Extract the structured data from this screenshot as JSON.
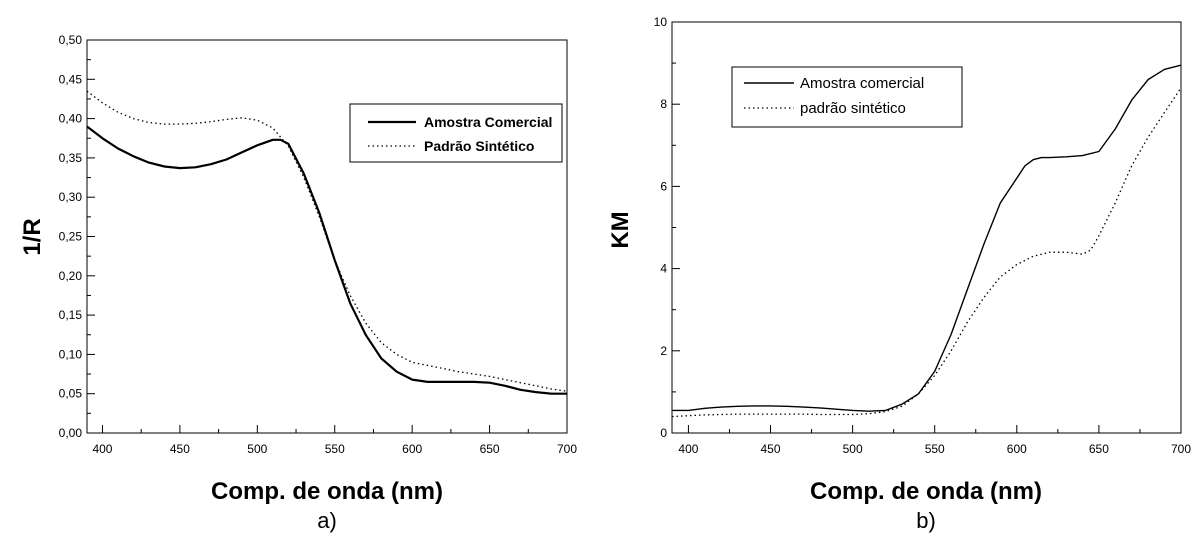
{
  "chart_data": [
    {
      "panel": "a)",
      "type": "line",
      "xlabel": "Comp. de onda (nm)",
      "ylabel": "1/R",
      "xlim": [
        390,
        700
      ],
      "ylim": [
        0.0,
        0.5
      ],
      "xticks": [
        "400",
        "450",
        "500",
        "550",
        "600",
        "650",
        "700"
      ],
      "yticks": [
        "0,00",
        "0,05",
        "0,10",
        "0,15",
        "0,20",
        "0,25",
        "0,30",
        "0,35",
        "0,40",
        "0,45",
        "0,50"
      ],
      "legend_position": "top-right",
      "series": [
        {
          "name": "Amostra Comercial",
          "style": "solid",
          "x": [
            390,
            400,
            410,
            420,
            430,
            440,
            450,
            460,
            470,
            480,
            490,
            500,
            510,
            515,
            520,
            530,
            540,
            550,
            560,
            570,
            580,
            590,
            600,
            610,
            620,
            630,
            640,
            650,
            660,
            670,
            680,
            690,
            700
          ],
          "y": [
            0.39,
            0.375,
            0.362,
            0.352,
            0.344,
            0.339,
            0.337,
            0.338,
            0.342,
            0.348,
            0.357,
            0.366,
            0.373,
            0.373,
            0.368,
            0.33,
            0.28,
            0.22,
            0.165,
            0.125,
            0.095,
            0.078,
            0.068,
            0.065,
            0.065,
            0.065,
            0.065,
            0.064,
            0.06,
            0.055,
            0.052,
            0.05,
            0.05
          ]
        },
        {
          "name": "Padrão Sintético",
          "style": "dotted",
          "x": [
            390,
            400,
            410,
            420,
            430,
            440,
            450,
            460,
            470,
            480,
            490,
            500,
            510,
            520,
            530,
            540,
            550,
            560,
            570,
            580,
            590,
            600,
            610,
            620,
            630,
            640,
            650,
            660,
            670,
            680,
            690,
            700
          ],
          "y": [
            0.435,
            0.42,
            0.408,
            0.4,
            0.395,
            0.393,
            0.393,
            0.394,
            0.396,
            0.399,
            0.401,
            0.398,
            0.388,
            0.365,
            0.325,
            0.275,
            0.22,
            0.175,
            0.14,
            0.115,
            0.1,
            0.09,
            0.086,
            0.082,
            0.078,
            0.075,
            0.072,
            0.068,
            0.064,
            0.06,
            0.056,
            0.053
          ]
        }
      ]
    },
    {
      "panel": "b)",
      "type": "line",
      "xlabel": "Comp. de onda (nm)",
      "ylabel": "KM",
      "xlim": [
        390,
        700
      ],
      "ylim": [
        0,
        10
      ],
      "xticks": [
        "400",
        "450",
        "500",
        "550",
        "600",
        "650",
        "700"
      ],
      "yticks": [
        "0",
        "2",
        "4",
        "6",
        "8",
        "10"
      ],
      "legend_position": "top-left",
      "series": [
        {
          "name": "Amostra comercial",
          "style": "solid",
          "x": [
            390,
            400,
            410,
            420,
            430,
            440,
            450,
            460,
            470,
            480,
            490,
            500,
            510,
            520,
            530,
            540,
            550,
            560,
            570,
            580,
            590,
            600,
            605,
            610,
            615,
            620,
            630,
            640,
            650,
            660,
            670,
            680,
            690,
            700
          ],
          "y": [
            0.55,
            0.55,
            0.6,
            0.63,
            0.65,
            0.66,
            0.66,
            0.65,
            0.63,
            0.61,
            0.58,
            0.55,
            0.53,
            0.55,
            0.7,
            0.95,
            1.5,
            2.4,
            3.5,
            4.6,
            5.6,
            6.2,
            6.5,
            6.65,
            6.7,
            6.7,
            6.72,
            6.75,
            6.85,
            7.4,
            8.1,
            8.6,
            8.85,
            8.95
          ]
        },
        {
          "name": "padrão sintético",
          "style": "dotted",
          "x": [
            390,
            400,
            410,
            420,
            430,
            440,
            450,
            460,
            470,
            480,
            490,
            500,
            510,
            520,
            530,
            540,
            550,
            560,
            570,
            580,
            590,
            600,
            610,
            620,
            630,
            640,
            645,
            650,
            660,
            670,
            680,
            690,
            700
          ],
          "y": [
            0.4,
            0.42,
            0.44,
            0.45,
            0.46,
            0.46,
            0.46,
            0.46,
            0.46,
            0.45,
            0.45,
            0.45,
            0.47,
            0.52,
            0.65,
            0.95,
            1.4,
            2.0,
            2.7,
            3.3,
            3.8,
            4.1,
            4.3,
            4.4,
            4.4,
            4.35,
            4.45,
            4.8,
            5.6,
            6.5,
            7.2,
            7.8,
            8.4
          ]
        }
      ]
    }
  ]
}
